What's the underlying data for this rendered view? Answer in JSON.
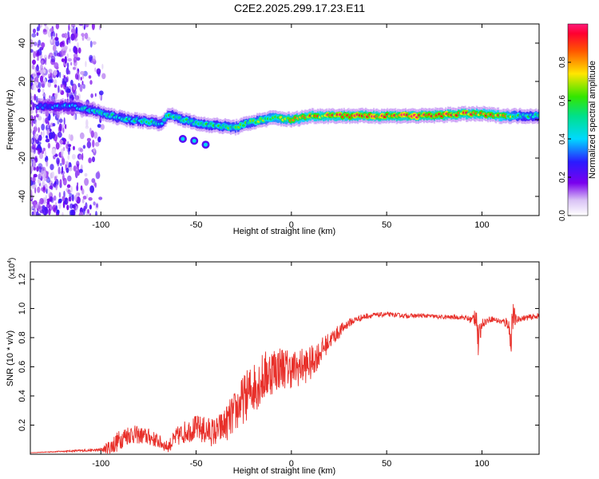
{
  "title": "C2E2.2025.299.17.23.E11",
  "chart_data": [
    {
      "type": "heatmap",
      "xlabel": "Height of straight line (km)",
      "ylabel": "Frequency (Hz)",
      "xlim": [
        -137,
        130
      ],
      "ylim": [
        -50,
        50
      ],
      "xticks": [
        "-100",
        "-50",
        "0",
        "50",
        "100"
      ],
      "xtick_values": [
        -100,
        -50,
        0,
        50,
        100
      ],
      "yticks": [
        "40",
        "20",
        "0",
        "-20",
        "-40"
      ],
      "ytick_values": [
        40,
        20,
        0,
        -20,
        -40
      ],
      "colorbar": {
        "label": "Normalized spectral amplitude",
        "range": [
          0,
          1
        ],
        "ticks": [
          "0.0",
          "0.2",
          "0.4",
          "0.6",
          "0.8"
        ],
        "tick_values": [
          0.0,
          0.2,
          0.4,
          0.6,
          0.8
        ]
      },
      "ridge": {
        "x": [
          -133,
          -125,
          -115,
          -105,
          -95,
          -85,
          -75,
          -68,
          -65,
          -60,
          -50,
          -40,
          -30,
          -20,
          -10,
          0,
          10,
          30,
          50,
          70,
          90,
          100,
          110,
          120,
          130
        ],
        "frequency": [
          7,
          7,
          7,
          5,
          2,
          0,
          -1,
          -2,
          3,
          1,
          -2,
          -3,
          -4,
          -1,
          1,
          0,
          2,
          2,
          2,
          2,
          3,
          3,
          2,
          2,
          2
        ],
        "amplitude": [
          0.3,
          0.35,
          0.4,
          0.45,
          0.5,
          0.5,
          0.5,
          0.45,
          0.55,
          0.55,
          0.55,
          0.55,
          0.6,
          0.6,
          0.7,
          0.75,
          0.85,
          0.9,
          0.92,
          0.95,
          0.9,
          0.85,
          0.8,
          0.55,
          0.5
        ]
      }
    },
    {
      "type": "line",
      "xlabel": "Height of straight line (km)",
      "ylabel": "SNR (10 * v/v)",
      "y_multiplier": "(x10",
      "y_multiplier_exp": "4",
      "y_multiplier_close": ")",
      "xlim": [
        -137,
        130
      ],
      "ylim": [
        0,
        1.32
      ],
      "xticks": [
        "-100",
        "-50",
        "0",
        "50",
        "100"
      ],
      "xtick_values": [
        -100,
        -50,
        0,
        50,
        100
      ],
      "yticks": [
        "0.2",
        "0.4",
        "0.6",
        "0.8",
        "1.0",
        "1.2"
      ],
      "ytick_values": [
        0.2,
        0.4,
        0.6,
        0.8,
        1.0,
        1.2
      ],
      "series": [
        {
          "color": "#e8302a",
          "x": [
            -137,
            -120,
            -100,
            -95,
            -92,
            -88,
            -85,
            -80,
            -75,
            -70,
            -65,
            -60,
            -55,
            -50,
            -45,
            -40,
            -35,
            -30,
            -25,
            -20,
            -15,
            -10,
            -5,
            0,
            5,
            10,
            15,
            20,
            25,
            30,
            35,
            40,
            50,
            60,
            70,
            80,
            90,
            95,
            97,
            98,
            100,
            105,
            110,
            114,
            115,
            116,
            118,
            120,
            125,
            130
          ],
          "y": [
            0.01,
            0.02,
            0.03,
            0.05,
            0.08,
            0.12,
            0.14,
            0.13,
            0.12,
            0.09,
            0.05,
            0.12,
            0.16,
            0.18,
            0.16,
            0.15,
            0.2,
            0.28,
            0.38,
            0.46,
            0.52,
            0.58,
            0.6,
            0.58,
            0.6,
            0.62,
            0.7,
            0.78,
            0.84,
            0.9,
            0.93,
            0.95,
            0.96,
            0.95,
            0.95,
            0.94,
            0.94,
            0.92,
            0.98,
            0.75,
            0.9,
            0.93,
            0.91,
            0.9,
            0.75,
            0.95,
            0.92,
            0.93,
            0.94,
            0.95
          ],
          "noise": [
            0.0,
            0.005,
            0.01,
            0.06,
            0.07,
            0.07,
            0.07,
            0.06,
            0.06,
            0.05,
            0.04,
            0.07,
            0.08,
            0.09,
            0.1,
            0.1,
            0.12,
            0.15,
            0.17,
            0.18,
            0.18,
            0.17,
            0.15,
            0.13,
            0.13,
            0.12,
            0.09,
            0.06,
            0.05,
            0.03,
            0.025,
            0.02,
            0.015,
            0.015,
            0.015,
            0.015,
            0.015,
            0.03,
            0.12,
            0.12,
            0.03,
            0.02,
            0.02,
            0.05,
            0.12,
            0.12,
            0.03,
            0.02,
            0.02,
            0.02
          ]
        }
      ]
    }
  ]
}
